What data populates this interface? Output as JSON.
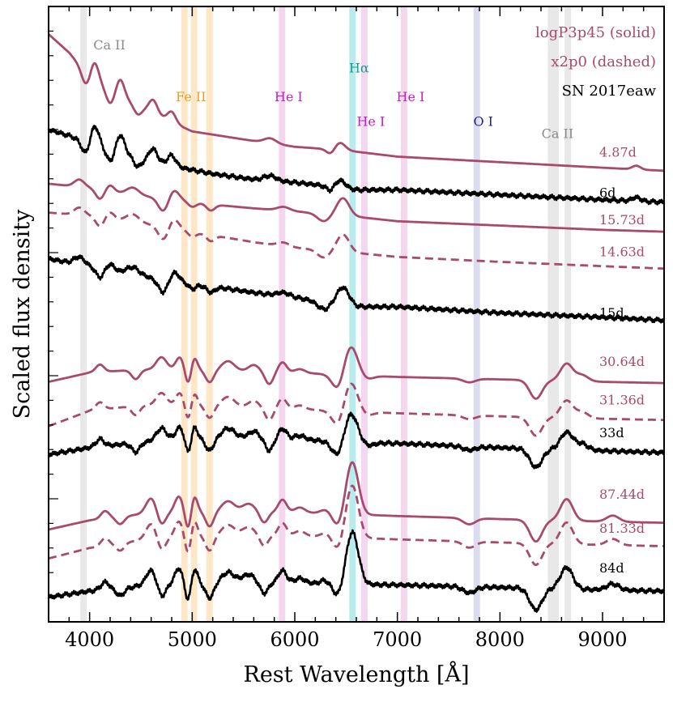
{
  "chart_data": {
    "type": "line",
    "title": "",
    "xlabel": "Rest Wavelength [Å]",
    "ylabel": "Scaled flux density",
    "xlim": [
      3600,
      9600
    ],
    "ylim": [
      0,
      1
    ],
    "x_ticks": [
      4000,
      5000,
      6000,
      7000,
      8000,
      9000
    ],
    "colors": {
      "model": "#a84a6e",
      "observed": "#000000"
    },
    "legend": [
      {
        "text": "logP3p45 (solid)",
        "color": "#a84a6e"
      },
      {
        "text": "x2p0 (dashed)",
        "color": "#a84a6e"
      },
      {
        "text": "SN 2017eaw",
        "color": "#000000"
      }
    ],
    "line_ids": [
      {
        "name": "Ca II",
        "x": 3940,
        "color": "#8a8a8a",
        "band": "#e8e8e8",
        "label_y": 0.93
      },
      {
        "name": "Fe II",
        "x": 4924,
        "color": "#f0a020",
        "band": "#fde7c6",
        "label_y": 0.846
      },
      {
        "name": "Fe II",
        "x": 5018,
        "color": "#f0a020",
        "band": "#fde7c6",
        "label_y": null
      },
      {
        "name": "Fe II",
        "x": 5169,
        "color": "#f0a020",
        "band": "#fde7c6",
        "label_y": null
      },
      {
        "name": "He I",
        "x": 5876,
        "color": "#c020c0",
        "band": "#f5d6ef",
        "label_y": 0.846
      },
      {
        "name": "Hα",
        "x": 6563,
        "color": "#109a9a",
        "band": "#b8ecec",
        "label_y": 0.893
      },
      {
        "name": "He I",
        "x": 6678,
        "color": "#c020c0",
        "band": "#f5d6ef",
        "label_y": 0.806
      },
      {
        "name": "He I",
        "x": 7065,
        "color": "#c020c0",
        "band": "#f5d6ef",
        "label_y": 0.846
      },
      {
        "name": "O I",
        "x": 7774,
        "color": "#202090",
        "band": "#dcdcf0",
        "label_y": 0.806
      },
      {
        "name": "Ca II",
        "x": 8498,
        "color": "#8a8a8a",
        "band": "#e8e8e8",
        "label_y": 0.786
      },
      {
        "name": "Ca II",
        "x": 8542,
        "color": "#8a8a8a",
        "band": "#e8e8e8",
        "label_y": null
      },
      {
        "name": "Ca II",
        "x": 8662,
        "color": "#8a8a8a",
        "band": "#e8e8e8",
        "label_y": null
      }
    ],
    "series": [
      {
        "name": "4.87d",
        "kind": "model",
        "style": "solid",
        "offset": 0.75,
        "label_y": 0.756,
        "template": "early",
        "base": [
          [
            3600,
            0.955
          ],
          [
            3800,
            0.925
          ],
          [
            4000,
            0.885
          ],
          [
            4200,
            0.862
          ],
          [
            4400,
            0.845
          ],
          [
            4600,
            0.83
          ],
          [
            4800,
            0.812
          ],
          [
            5000,
            0.797
          ],
          [
            5500,
            0.784
          ],
          [
            6000,
            0.772
          ],
          [
            6500,
            0.766
          ],
          [
            7000,
            0.756
          ],
          [
            8000,
            0.747
          ],
          [
            9000,
            0.738
          ],
          [
            9600,
            0.733
          ]
        ]
      },
      {
        "name": "6d",
        "kind": "observed",
        "style": "solid",
        "offset": 0.0,
        "label_y": 0.69,
        "template": "early",
        "base": [
          [
            3600,
            0.8
          ],
          [
            3800,
            0.79
          ],
          [
            4000,
            0.779
          ],
          [
            4400,
            0.758
          ],
          [
            4800,
            0.741
          ],
          [
            5200,
            0.728
          ],
          [
            5600,
            0.719
          ],
          [
            6000,
            0.714
          ],
          [
            6400,
            0.707
          ],
          [
            6600,
            0.702
          ],
          [
            7000,
            0.702
          ],
          [
            8000,
            0.694
          ],
          [
            9000,
            0.686
          ],
          [
            9600,
            0.682
          ]
        ]
      },
      {
        "name": "15.73d",
        "kind": "model",
        "style": "solid",
        "offset": 0.0,
        "label_y": 0.646,
        "template": "mid",
        "base": [
          [
            3600,
            0.712
          ],
          [
            4000,
            0.705
          ],
          [
            4400,
            0.694
          ],
          [
            4800,
            0.687
          ],
          [
            5200,
            0.678
          ],
          [
            5600,
            0.672
          ],
          [
            6000,
            0.667
          ],
          [
            6500,
            0.66
          ],
          [
            7000,
            0.651
          ],
          [
            8000,
            0.644
          ],
          [
            9000,
            0.637
          ],
          [
            9600,
            0.634
          ]
        ]
      },
      {
        "name": "14.63d",
        "kind": "model",
        "style": "dashed",
        "offset": 0.0,
        "label_y": 0.594,
        "template": "mid",
        "base": [
          [
            3600,
            0.665
          ],
          [
            4000,
            0.66
          ],
          [
            4400,
            0.651
          ],
          [
            4800,
            0.64
          ],
          [
            5200,
            0.628
          ],
          [
            5600,
            0.617
          ],
          [
            6000,
            0.608
          ],
          [
            6500,
            0.601
          ],
          [
            7000,
            0.593
          ],
          [
            8000,
            0.585
          ],
          [
            9000,
            0.578
          ],
          [
            9600,
            0.574
          ]
        ]
      },
      {
        "name": "15d",
        "kind": "observed",
        "style": "solid",
        "offset": 0.0,
        "label_y": 0.495,
        "template": "mid",
        "base": [
          [
            3600,
            0.59
          ],
          [
            4000,
            0.578
          ],
          [
            4400,
            0.565
          ],
          [
            4800,
            0.554
          ],
          [
            5200,
            0.545
          ],
          [
            5600,
            0.535
          ],
          [
            6000,
            0.527
          ],
          [
            6400,
            0.517
          ],
          [
            6600,
            0.512
          ],
          [
            7000,
            0.512
          ],
          [
            8000,
            0.502
          ],
          [
            9000,
            0.495
          ],
          [
            9600,
            0.49
          ]
        ]
      },
      {
        "name": "30.64d",
        "kind": "model",
        "style": "solid",
        "offset": 0.0,
        "label_y": 0.416,
        "template": "late",
        "base": [
          [
            3600,
            0.39
          ],
          [
            4000,
            0.405
          ],
          [
            4500,
            0.41
          ],
          [
            5000,
            0.41
          ],
          [
            5500,
            0.408
          ],
          [
            6000,
            0.405
          ],
          [
            6500,
            0.401
          ],
          [
            7000,
            0.398
          ],
          [
            8000,
            0.394
          ],
          [
            9000,
            0.39
          ],
          [
            9600,
            0.388
          ]
        ]
      },
      {
        "name": "31.36d",
        "kind": "model",
        "style": "dashed",
        "offset": 0.0,
        "label_y": 0.353,
        "template": "late",
        "base": [
          [
            3600,
            0.318
          ],
          [
            4000,
            0.343
          ],
          [
            4500,
            0.352
          ],
          [
            5000,
            0.352
          ],
          [
            5500,
            0.35
          ],
          [
            6000,
            0.346
          ],
          [
            6500,
            0.342
          ],
          [
            7000,
            0.339
          ],
          [
            8000,
            0.334
          ],
          [
            9000,
            0.33
          ],
          [
            9600,
            0.328
          ]
        ]
      },
      {
        "name": "33d",
        "kind": "observed",
        "style": "solid",
        "offset": 0.0,
        "label_y": 0.3,
        "template": "late",
        "base": [
          [
            3600,
            0.272
          ],
          [
            4000,
            0.283
          ],
          [
            4500,
            0.292
          ],
          [
            5000,
            0.298
          ],
          [
            5500,
            0.3
          ],
          [
            6000,
            0.297
          ],
          [
            6500,
            0.292
          ],
          [
            7000,
            0.29
          ],
          [
            8000,
            0.283
          ],
          [
            9000,
            0.278
          ],
          [
            9600,
            0.275
          ]
        ]
      },
      {
        "name": "87.44d",
        "kind": "model",
        "style": "solid",
        "offset": 0.0,
        "label_y": 0.2,
        "template": "neb",
        "base": [
          [
            3600,
            0.15
          ],
          [
            4000,
            0.165
          ],
          [
            4500,
            0.175
          ],
          [
            5000,
            0.18
          ],
          [
            5500,
            0.18
          ],
          [
            6000,
            0.178
          ],
          [
            6500,
            0.175
          ],
          [
            7000,
            0.172
          ],
          [
            8000,
            0.167
          ],
          [
            9000,
            0.163
          ],
          [
            9600,
            0.161
          ]
        ]
      },
      {
        "name": "81.33d",
        "kind": "model",
        "style": "dashed",
        "offset": 0.0,
        "label_y": 0.145,
        "template": "neb",
        "base": [
          [
            3600,
            0.103
          ],
          [
            4000,
            0.12
          ],
          [
            4500,
            0.133
          ],
          [
            5000,
            0.14
          ],
          [
            5500,
            0.142
          ],
          [
            6000,
            0.14
          ],
          [
            6500,
            0.137
          ],
          [
            7000,
            0.134
          ],
          [
            8000,
            0.129
          ],
          [
            9000,
            0.125
          ],
          [
            9600,
            0.123
          ]
        ]
      },
      {
        "name": "84d",
        "kind": "observed",
        "style": "solid",
        "offset": 0.0,
        "label_y": 0.08,
        "template": "neb",
        "base": [
          [
            3600,
            0.04
          ],
          [
            4000,
            0.05
          ],
          [
            4500,
            0.058
          ],
          [
            5000,
            0.063
          ],
          [
            5500,
            0.065
          ],
          [
            6000,
            0.063
          ],
          [
            6500,
            0.061
          ],
          [
            7000,
            0.06
          ],
          [
            8000,
            0.056
          ],
          [
            9000,
            0.052
          ],
          [
            9600,
            0.05
          ]
        ]
      }
    ]
  }
}
